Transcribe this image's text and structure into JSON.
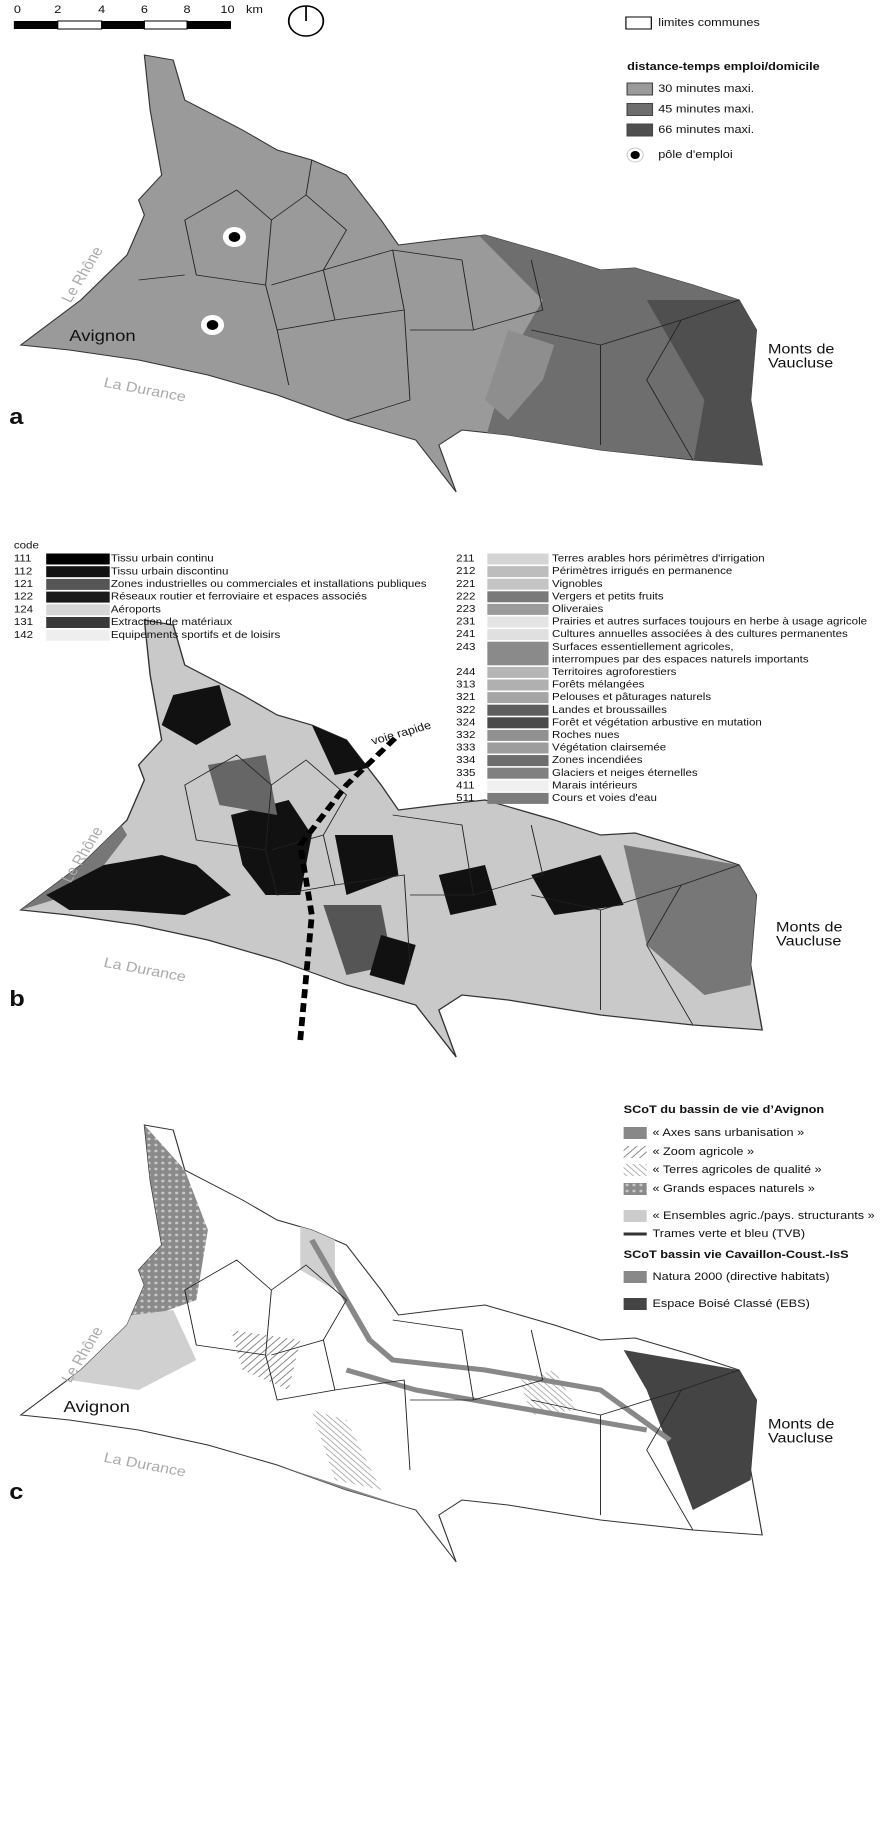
{
  "scale_bar": {
    "ticks": [
      "0",
      "2",
      "4",
      "6",
      "8",
      "10"
    ],
    "unit": "km"
  },
  "panel_a": {
    "label": "a",
    "legend": {
      "boundary": "limites communes",
      "title": "distance-temps emploi/domicile",
      "items": [
        "30 minutes maxi.",
        "45 minutes maxi.",
        "66 minutes maxi."
      ],
      "pole": "pôle d'emploi"
    },
    "rhone": "Le Rhône",
    "avignon": "Avignon",
    "durance": "La Durance",
    "monts": [
      "Monts de",
      "Vaucluse"
    ]
  },
  "panel_b": {
    "label": "b",
    "legend_title": "code",
    "legend_left": [
      {
        "code": "111",
        "label": [
          "Tissu urbain continu"
        ]
      },
      {
        "code": "112",
        "label": [
          "Tissu urbain discontinu"
        ]
      },
      {
        "code": "121",
        "label": [
          "Zones industrielles ou commerciales et installations publiques"
        ]
      },
      {
        "code": "122",
        "label": [
          "Réseaux routier et ferroviaire et espaces associés"
        ]
      },
      {
        "code": "124",
        "label": [
          "Aéroports"
        ]
      },
      {
        "code": "131",
        "label": [
          "Extraction de matériaux"
        ]
      },
      {
        "code": "142",
        "label": [
          "Equipements sportifs et de loisirs"
        ]
      }
    ],
    "legend_right": [
      {
        "code": "211",
        "label": [
          "Terres arables hors périmètres d'irrigation"
        ]
      },
      {
        "code": "212",
        "label": [
          "Périmètres irrigués en permanence"
        ]
      },
      {
        "code": "221",
        "label": [
          "Vignobles"
        ]
      },
      {
        "code": "222",
        "label": [
          "Vergers et petits fruits"
        ]
      },
      {
        "code": "223",
        "label": [
          "Oliveraies"
        ]
      },
      {
        "code": "231",
        "label": [
          "Prairies et autres surfaces toujours en herbe à usage agricole"
        ]
      },
      {
        "code": "241",
        "label": [
          "Cultures annuelles associées à des cultures permanentes"
        ]
      },
      {
        "code": "243",
        "label": [
          "Surfaces essentiellement agricoles,",
          "interrompues par des espaces naturels importants"
        ]
      },
      {
        "code": "244",
        "label": [
          "Territoires agroforestiers"
        ]
      },
      {
        "code": "313",
        "label": [
          "Forêts mélangées"
        ]
      },
      {
        "code": "321",
        "label": [
          "Pelouses et pâturages naturels"
        ]
      },
      {
        "code": "322",
        "label": [
          "Landes et broussailles"
        ]
      },
      {
        "code": "324",
        "label": [
          "Forêt et végétation arbustive en mutation"
        ]
      },
      {
        "code": "332",
        "label": [
          "Roches nues"
        ]
      },
      {
        "code": "333",
        "label": [
          "Végétation clairsemée"
        ]
      },
      {
        "code": "334",
        "label": [
          "Zones incendiées"
        ]
      },
      {
        "code": "335",
        "label": [
          "Glaciers et neiges éternelles"
        ]
      },
      {
        "code": "411",
        "label": [
          "Marais intérieurs"
        ]
      },
      {
        "code": "511",
        "label": [
          "Cours et voies d'eau"
        ]
      }
    ],
    "road": "voie rapide",
    "rhone": "Le Rhône",
    "durance": "La Durance",
    "monts": [
      "Monts de",
      "Vaucluse"
    ]
  },
  "panel_c": {
    "label": "c",
    "legend_title_1": "SCoT du bassin de vie d’Avignon",
    "legend_items_1": [
      "« Axes sans urbanisation »",
      "« Zoom agricole »",
      "« Terres agricoles de qualité »",
      "« Grands espaces naturels »",
      "« Ensembles agric./pays. structurants »",
      "Trames verte et bleu (TVB)"
    ],
    "legend_title_2": "SCoT bassin vie Cavaillon-Coust.-IsS",
    "legend_items_2": [
      "Natura 2000 (directive habitats)",
      "Espace Boisé Classé (EBS)"
    ],
    "rhone": "Le Rhône",
    "avignon": "Avignon",
    "durance": "La Durance",
    "monts": [
      "Monts de",
      "Vaucluse"
    ]
  }
}
